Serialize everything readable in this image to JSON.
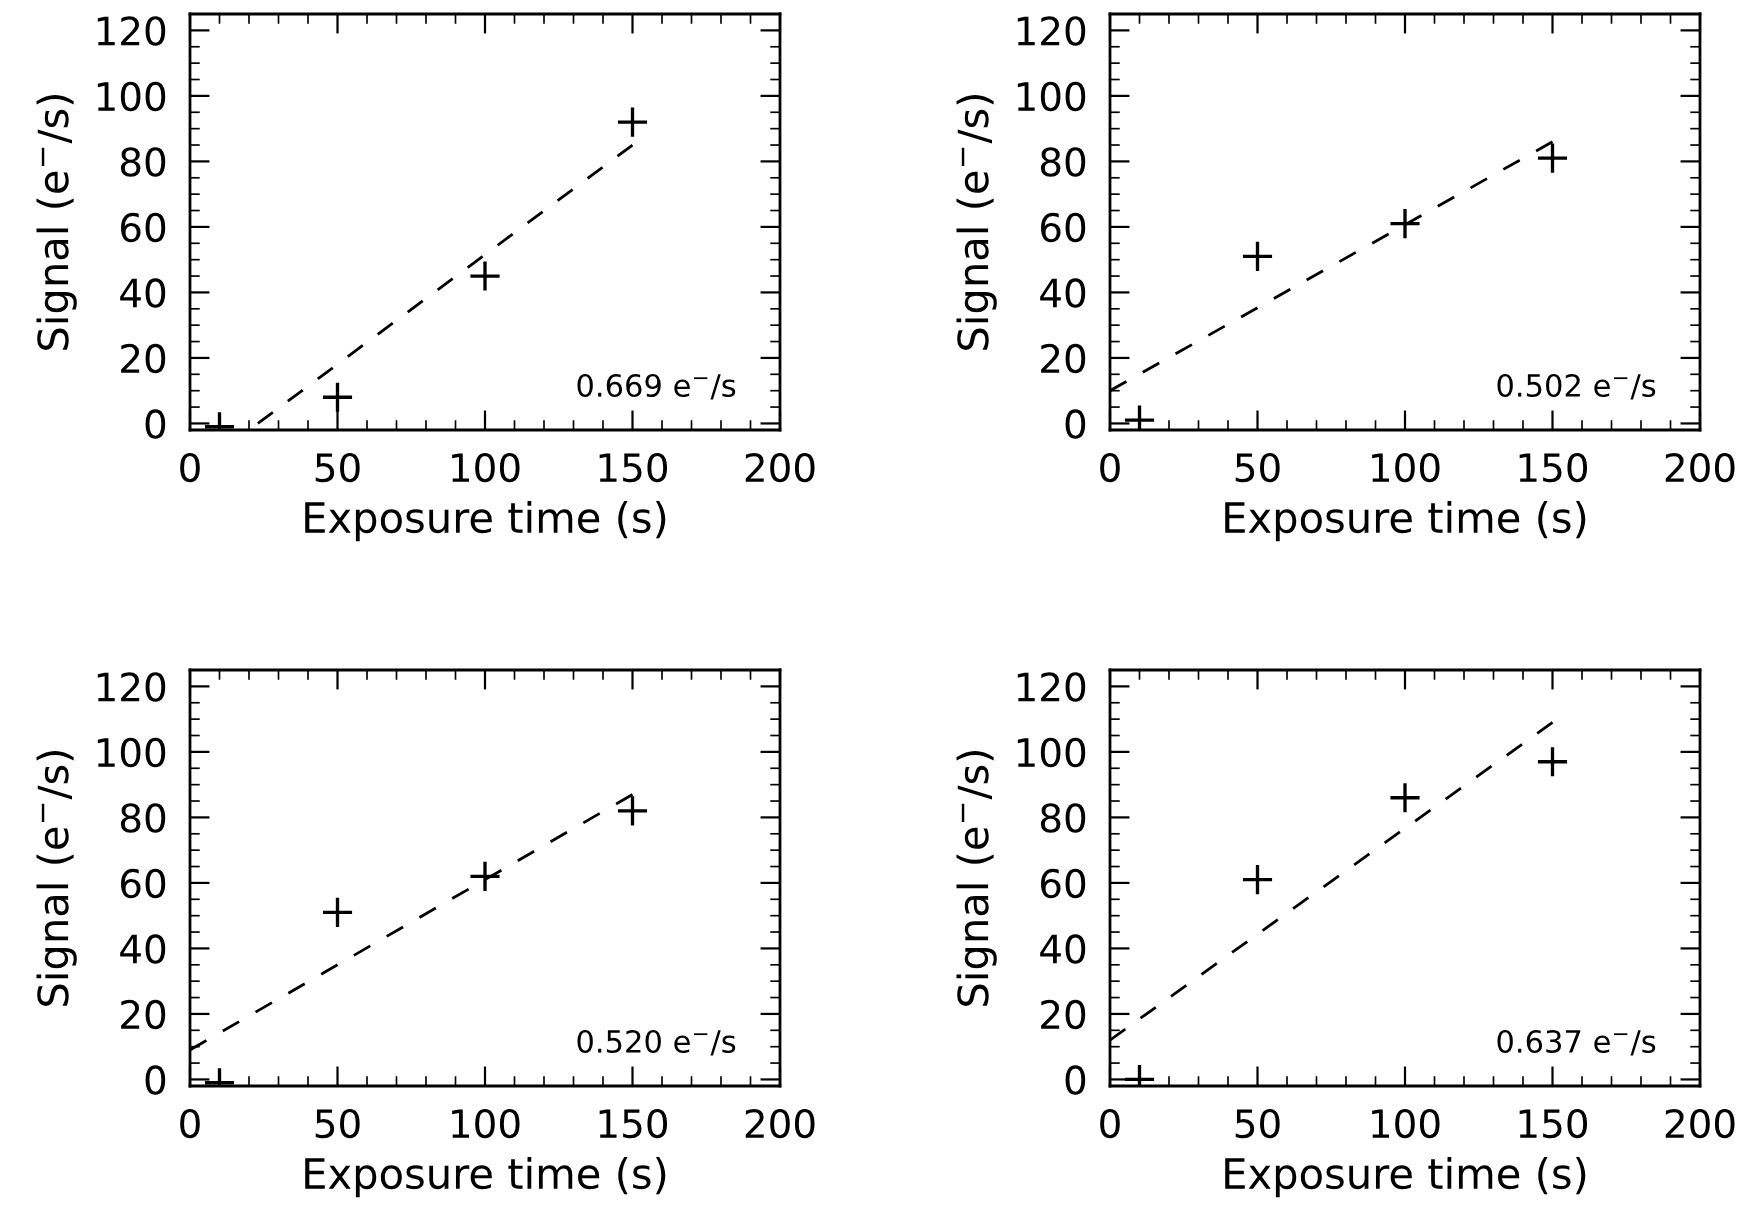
{
  "chart_data": [
    {
      "type": "scatter",
      "xlabel": "Exposure time (s)",
      "ylabel": "Signal (e$^{−}$/s)",
      "xlim": [
        0,
        200
      ],
      "ylim": [
        -2,
        125
      ],
      "xticks": [
        0,
        {
          "value": 10,
          "label": null
        },
        {
          "value": 20,
          "label": null
        },
        {
          "value": 30,
          "label": null
        },
        {
          "value": 40,
          "label": null
        },
        50,
        {
          "value": 60,
          "label": null
        },
        {
          "value": 70,
          "label": null
        },
        {
          "value": 80,
          "label": null
        },
        {
          "value": 90,
          "label": null
        },
        100,
        {
          "value": 110,
          "label": null
        },
        {
          "value": 120,
          "label": null
        },
        {
          "value": 130,
          "label": null
        },
        {
          "value": 140,
          "label": null
        },
        150,
        {
          "value": 160,
          "label": null
        },
        {
          "value": 170,
          "label": null
        },
        {
          "value": 180,
          "label": null
        },
        {
          "value": 190,
          "label": null
        },
        200
      ],
      "yticks": [
        0,
        {
          "value": 5,
          "label": null
        },
        {
          "value": 10,
          "label": null
        },
        {
          "value": 15,
          "label": null
        },
        20,
        {
          "value": 25,
          "label": null
        },
        {
          "value": 30,
          "label": null
        },
        {
          "value": 35,
          "label": null
        },
        40,
        {
          "value": 45,
          "label": null
        },
        {
          "value": 50,
          "label": null
        },
        {
          "value": 55,
          "label": null
        },
        60,
        {
          "value": 65,
          "label": null
        },
        {
          "value": 70,
          "label": null
        },
        {
          "value": 75,
          "label": null
        },
        80,
        {
          "value": 85,
          "label": null
        },
        {
          "value": 90,
          "label": null
        },
        {
          "value": 95,
          "label": null
        },
        100,
        {
          "value": 105,
          "label": null
        },
        {
          "value": 110,
          "label": null
        },
        {
          "value": 115,
          "label": null
        },
        120
      ],
      "grid": false,
      "annotations": [
        "0.669 e$^{−}$/s"
      ],
      "series": [
        {
          "marker": "cross",
          "color": "#000000",
          "x": [
            10,
            50,
            100,
            150
          ],
          "values": [
            -1,
            8,
            45,
            92
          ]
        },
        {
          "type": "line",
          "line_style": "dashed",
          "marker": "none",
          "color": "#000000",
          "x": [
            23,
            150
          ],
          "values": [
            0,
            85
          ]
        }
      ]
    },
    {
      "type": "scatter",
      "xlabel": "Exposure time (s)",
      "ylabel": "Signal (e$^{−}$/s)",
      "xlim": [
        0,
        200
      ],
      "ylim": [
        -2,
        125
      ],
      "xticks": [
        0,
        {
          "value": 10,
          "label": null
        },
        {
          "value": 20,
          "label": null
        },
        {
          "value": 30,
          "label": null
        },
        {
          "value": 40,
          "label": null
        },
        50,
        {
          "value": 60,
          "label": null
        },
        {
          "value": 70,
          "label": null
        },
        {
          "value": 80,
          "label": null
        },
        {
          "value": 90,
          "label": null
        },
        100,
        {
          "value": 110,
          "label": null
        },
        {
          "value": 120,
          "label": null
        },
        {
          "value": 130,
          "label": null
        },
        {
          "value": 140,
          "label": null
        },
        150,
        {
          "value": 160,
          "label": null
        },
        {
          "value": 170,
          "label": null
        },
        {
          "value": 180,
          "label": null
        },
        {
          "value": 190,
          "label": null
        },
        200
      ],
      "yticks": [
        0,
        {
          "value": 5,
          "label": null
        },
        {
          "value": 10,
          "label": null
        },
        {
          "value": 15,
          "label": null
        },
        20,
        {
          "value": 25,
          "label": null
        },
        {
          "value": 30,
          "label": null
        },
        {
          "value": 35,
          "label": null
        },
        40,
        {
          "value": 45,
          "label": null
        },
        {
          "value": 50,
          "label": null
        },
        {
          "value": 55,
          "label": null
        },
        60,
        {
          "value": 65,
          "label": null
        },
        {
          "value": 70,
          "label": null
        },
        {
          "value": 75,
          "label": null
        },
        80,
        {
          "value": 85,
          "label": null
        },
        {
          "value": 90,
          "label": null
        },
        {
          "value": 95,
          "label": null
        },
        100,
        {
          "value": 105,
          "label": null
        },
        {
          "value": 110,
          "label": null
        },
        {
          "value": 115,
          "label": null
        },
        120
      ],
      "grid": false,
      "annotations": [
        "0.502 e$^{−}$/s"
      ],
      "series": [
        {
          "marker": "cross",
          "color": "#000000",
          "x": [
            10,
            50,
            100,
            150
          ],
          "values": [
            1,
            51,
            61,
            81
          ]
        },
        {
          "type": "line",
          "line_style": "dashed",
          "marker": "none",
          "color": "#000000",
          "x": [
            0,
            150
          ],
          "values": [
            10,
            86
          ]
        }
      ]
    },
    {
      "type": "scatter",
      "xlabel": "Exposure time (s)",
      "ylabel": "Signal (e$^{−}$/s)",
      "xlim": [
        0,
        200
      ],
      "ylim": [
        -2,
        125
      ],
      "xticks": [
        0,
        {
          "value": 10,
          "label": null
        },
        {
          "value": 20,
          "label": null
        },
        {
          "value": 30,
          "label": null
        },
        {
          "value": 40,
          "label": null
        },
        50,
        {
          "value": 60,
          "label": null
        },
        {
          "value": 70,
          "label": null
        },
        {
          "value": 80,
          "label": null
        },
        {
          "value": 90,
          "label": null
        },
        100,
        {
          "value": 110,
          "label": null
        },
        {
          "value": 120,
          "label": null
        },
        {
          "value": 130,
          "label": null
        },
        {
          "value": 140,
          "label": null
        },
        150,
        {
          "value": 160,
          "label": null
        },
        {
          "value": 170,
          "label": null
        },
        {
          "value": 180,
          "label": null
        },
        {
          "value": 190,
          "label": null
        },
        200
      ],
      "yticks": [
        0,
        {
          "value": 5,
          "label": null
        },
        {
          "value": 10,
          "label": null
        },
        {
          "value": 15,
          "label": null
        },
        20,
        {
          "value": 25,
          "label": null
        },
        {
          "value": 30,
          "label": null
        },
        {
          "value": 35,
          "label": null
        },
        40,
        {
          "value": 45,
          "label": null
        },
        {
          "value": 50,
          "label": null
        },
        {
          "value": 55,
          "label": null
        },
        60,
        {
          "value": 65,
          "label": null
        },
        {
          "value": 70,
          "label": null
        },
        {
          "value": 75,
          "label": null
        },
        80,
        {
          "value": 85,
          "label": null
        },
        {
          "value": 90,
          "label": null
        },
        {
          "value": 95,
          "label": null
        },
        100,
        {
          "value": 105,
          "label": null
        },
        {
          "value": 110,
          "label": null
        },
        {
          "value": 115,
          "label": null
        },
        120
      ],
      "grid": false,
      "annotations": [
        "0.520 e$^{−}$/s"
      ],
      "series": [
        {
          "marker": "cross",
          "color": "#000000",
          "x": [
            10,
            50,
            100,
            150
          ],
          "values": [
            -1,
            51,
            62,
            82
          ]
        },
        {
          "type": "line",
          "line_style": "dashed",
          "marker": "none",
          "color": "#000000",
          "x": [
            0,
            150
          ],
          "values": [
            9,
            87
          ]
        }
      ]
    },
    {
      "type": "scatter",
      "xlabel": "Exposure time (s)",
      "ylabel": "Signal (e$^{−}$/s)",
      "xlim": [
        0,
        200
      ],
      "ylim": [
        -2,
        125
      ],
      "xticks": [
        0,
        {
          "value": 10,
          "label": null
        },
        {
          "value": 20,
          "label": null
        },
        {
          "value": 30,
          "label": null
        },
        {
          "value": 40,
          "label": null
        },
        50,
        {
          "value": 60,
          "label": null
        },
        {
          "value": 70,
          "label": null
        },
        {
          "value": 80,
          "label": null
        },
        {
          "value": 90,
          "label": null
        },
        100,
        {
          "value": 110,
          "label": null
        },
        {
          "value": 120,
          "label": null
        },
        {
          "value": 130,
          "label": null
        },
        {
          "value": 140,
          "label": null
        },
        150,
        {
          "value": 160,
          "label": null
        },
        {
          "value": 170,
          "label": null
        },
        {
          "value": 180,
          "label": null
        },
        {
          "value": 190,
          "label": null
        },
        200
      ],
      "yticks": [
        0,
        {
          "value": 5,
          "label": null
        },
        {
          "value": 10,
          "label": null
        },
        {
          "value": 15,
          "label": null
        },
        20,
        {
          "value": 25,
          "label": null
        },
        {
          "value": 30,
          "label": null
        },
        {
          "value": 35,
          "label": null
        },
        40,
        {
          "value": 45,
          "label": null
        },
        {
          "value": 50,
          "label": null
        },
        {
          "value": 55,
          "label": null
        },
        60,
        {
          "value": 65,
          "label": null
        },
        {
          "value": 70,
          "label": null
        },
        {
          "value": 75,
          "label": null
        },
        80,
        {
          "value": 85,
          "label": null
        },
        {
          "value": 90,
          "label": null
        },
        {
          "value": 95,
          "label": null
        },
        100,
        {
          "value": 105,
          "label": null
        },
        {
          "value": 110,
          "label": null
        },
        {
          "value": 115,
          "label": null
        },
        120
      ],
      "grid": false,
      "annotations": [
        "0.637 e$^{−}$/s"
      ],
      "series": [
        {
          "marker": "cross",
          "color": "#000000",
          "x": [
            10,
            50,
            100,
            150
          ],
          "values": [
            0,
            61,
            86,
            97
          ]
        },
        {
          "type": "line",
          "line_style": "dashed",
          "marker": "none",
          "color": "#000000",
          "x": [
            0,
            150
          ],
          "values": [
            12,
            109
          ]
        }
      ]
    }
  ]
}
